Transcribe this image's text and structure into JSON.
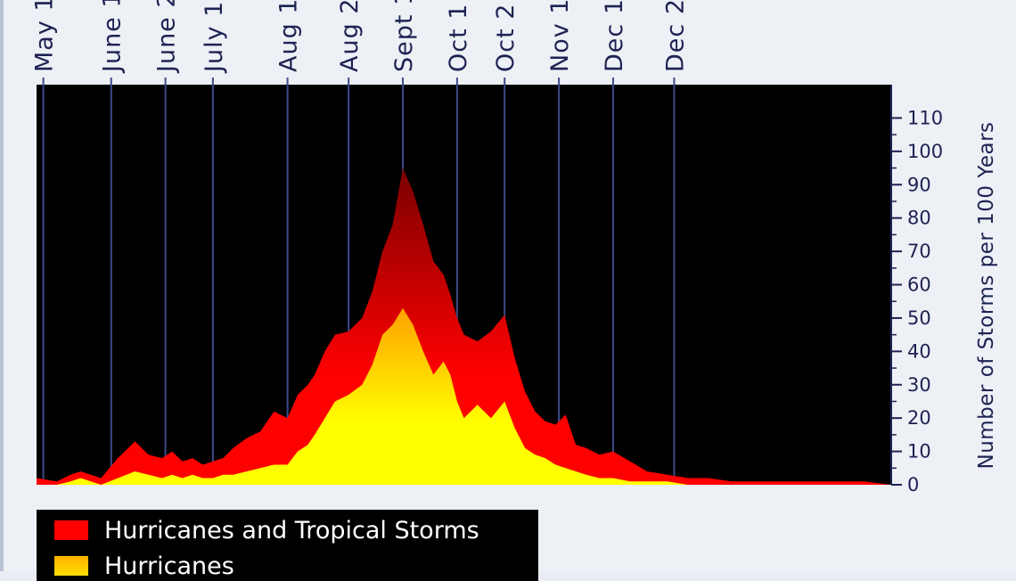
{
  "chart_data": {
    "type": "area",
    "ylabel": "Number of Storms per 100 Years",
    "yticks": [
      0,
      10,
      20,
      30,
      40,
      50,
      60,
      70,
      80,
      90,
      100,
      110
    ],
    "ylim": [
      0,
      120
    ],
    "x_range": [
      0,
      252
    ],
    "x_tick_labels": [
      {
        "label": "May 1",
        "x": 2
      },
      {
        "label": "June 1",
        "x": 22
      },
      {
        "label": "June 2",
        "x": 38
      },
      {
        "label": "July 1",
        "x": 52
      },
      {
        "label": "Aug 1",
        "x": 74
      },
      {
        "label": "Aug 2",
        "x": 92
      },
      {
        "label": "Sept 1",
        "x": 108
      },
      {
        "label": "Oct 1",
        "x": 124
      },
      {
        "label": "Oct 2",
        "x": 138
      },
      {
        "label": "Nov 1",
        "x": 154
      },
      {
        "label": "Dec 1",
        "x": 170
      },
      {
        "label": "Dec 2",
        "x": 188
      }
    ],
    "grid": "vertical",
    "legend_position": "bottom-left",
    "series": [
      {
        "name": "Hurricanes and Tropical Storms",
        "color": "#ff0000",
        "peak_color": "#7a0000",
        "x": [
          0,
          6,
          10,
          13,
          16,
          19,
          24,
          29,
          33,
          37,
          40,
          43,
          46,
          49,
          52,
          55,
          58,
          62,
          66,
          70,
          74,
          77,
          80,
          82,
          85,
          88,
          92,
          96,
          99,
          102,
          105,
          108,
          111,
          114,
          117,
          120,
          122,
          124,
          126,
          130,
          134,
          138,
          141,
          144,
          147,
          150,
          153,
          156,
          159,
          162,
          166,
          170,
          175,
          180,
          186,
          192,
          198,
          205,
          212,
          220,
          228,
          236,
          244,
          252
        ],
        "values": [
          2,
          1,
          3,
          4,
          3,
          2,
          8,
          13,
          9,
          8,
          10,
          7,
          8,
          6,
          7,
          8,
          11,
          14,
          16,
          22,
          20,
          27,
          30,
          33,
          40,
          45,
          46,
          50,
          58,
          70,
          78,
          95,
          88,
          78,
          67,
          63,
          57,
          50,
          45,
          43,
          46,
          51,
          38,
          28,
          22,
          19,
          18,
          21,
          12,
          11,
          9,
          10,
          7,
          4,
          3,
          2,
          2,
          1,
          1,
          1,
          1,
          1,
          1,
          0
        ]
      },
      {
        "name": "Hurricanes",
        "color": "#ffff00",
        "peak_color": "#ffa000",
        "x": [
          0,
          6,
          10,
          13,
          16,
          19,
          24,
          29,
          33,
          37,
          40,
          43,
          46,
          49,
          52,
          55,
          58,
          62,
          66,
          70,
          74,
          77,
          80,
          82,
          85,
          88,
          92,
          96,
          99,
          102,
          105,
          108,
          111,
          114,
          117,
          120,
          122,
          124,
          126,
          130,
          134,
          138,
          141,
          144,
          147,
          150,
          153,
          156,
          159,
          162,
          166,
          170,
          175,
          180,
          186,
          192,
          198,
          205,
          212,
          220,
          228,
          236,
          244,
          252
        ],
        "values": [
          0,
          0,
          1,
          2,
          1,
          0,
          2,
          4,
          3,
          2,
          3,
          2,
          3,
          2,
          2,
          3,
          3,
          4,
          5,
          6,
          6,
          10,
          12,
          15,
          20,
          25,
          27,
          30,
          36,
          45,
          48,
          53,
          48,
          40,
          33,
          37,
          33,
          25,
          20,
          24,
          20,
          25,
          17,
          11,
          9,
          8,
          6,
          5,
          4,
          3,
          2,
          2,
          1,
          1,
          1,
          0,
          0,
          0,
          0,
          0,
          0,
          0,
          0,
          0
        ]
      }
    ]
  }
}
